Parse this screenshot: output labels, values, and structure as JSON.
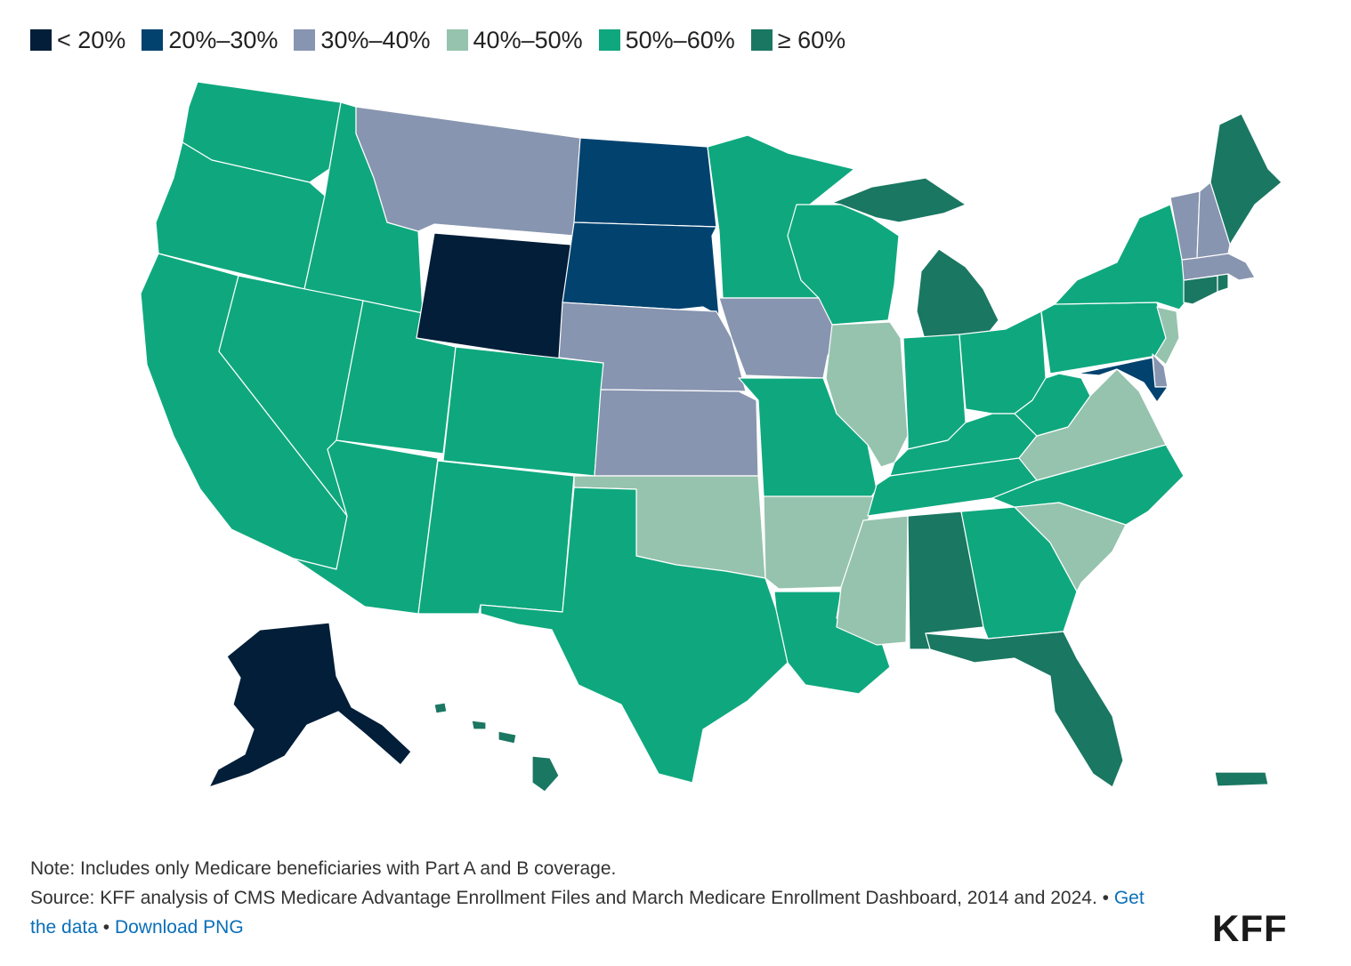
{
  "legend": [
    {
      "label": "< 20%",
      "color": "#021e38"
    },
    {
      "label": "20%–30%",
      "color": "#01426f"
    },
    {
      "label": "30%–40%",
      "color": "#8895b0"
    },
    {
      "label": "40%–50%",
      "color": "#96c3ae"
    },
    {
      "label": "50%–60%",
      "color": "#0fa87e"
    },
    {
      "label": "≥ 60%",
      "color": "#1a7762"
    }
  ],
  "map_data": {
    "type": "choropleth",
    "region": "United States",
    "bins": [
      "< 20%",
      "20%–30%",
      "30%–40%",
      "40%–50%",
      "50%–60%",
      "≥ 60%"
    ],
    "states": {
      "WA": "50%–60%",
      "OR": "50%–60%",
      "CA": "50%–60%",
      "ID": "50%–60%",
      "NV": "50%–60%",
      "UT": "50%–60%",
      "AZ": "50%–60%",
      "MT": "30%–40%",
      "WY": "< 20%",
      "CO": "50%–60%",
      "NM": "50%–60%",
      "ND": "20%–30%",
      "SD": "20%–30%",
      "NE": "30%–40%",
      "KS": "30%–40%",
      "OK": "40%–50%",
      "TX": "50%–60%",
      "MN": "50%–60%",
      "IA": "30%–40%",
      "MO": "50%–60%",
      "AR": "40%–50%",
      "LA": "50%–60%",
      "WI": "50%–60%",
      "IL": "40%–50%",
      "MI": "≥ 60%",
      "IN": "50%–60%",
      "OH": "50%–60%",
      "KY": "50%–60%",
      "TN": "50%–60%",
      "MS": "40%–50%",
      "AL": "≥ 60%",
      "GA": "50%–60%",
      "FL": "≥ 60%",
      "SC": "40%–50%",
      "NC": "50%–60%",
      "VA": "40%–50%",
      "WV": "50%–60%",
      "PA": "50%–60%",
      "NY": "50%–60%",
      "NJ": "40%–50%",
      "DE": "30%–40%",
      "MD": "20%–30%",
      "CT": "≥ 60%",
      "RI": "≥ 60%",
      "MA": "30%–40%",
      "VT": "30%–40%",
      "NH": "30%–40%",
      "ME": "≥ 60%",
      "AK": "< 20%",
      "HI": "≥ 60%",
      "PR": "≥ 60%"
    }
  },
  "footer": {
    "note": "Note: Includes only Medicare beneficiaries with Part A and B coverage.",
    "source": "Source: KFF analysis of CMS Medicare Advantage Enrollment Files and March Medicare Enrollment Dashboard, 2014 and 2024.",
    "sep1": " • ",
    "link1": "Get the data",
    "sep2": " • ",
    "link2": "Download PNG"
  },
  "logo": "KFF"
}
